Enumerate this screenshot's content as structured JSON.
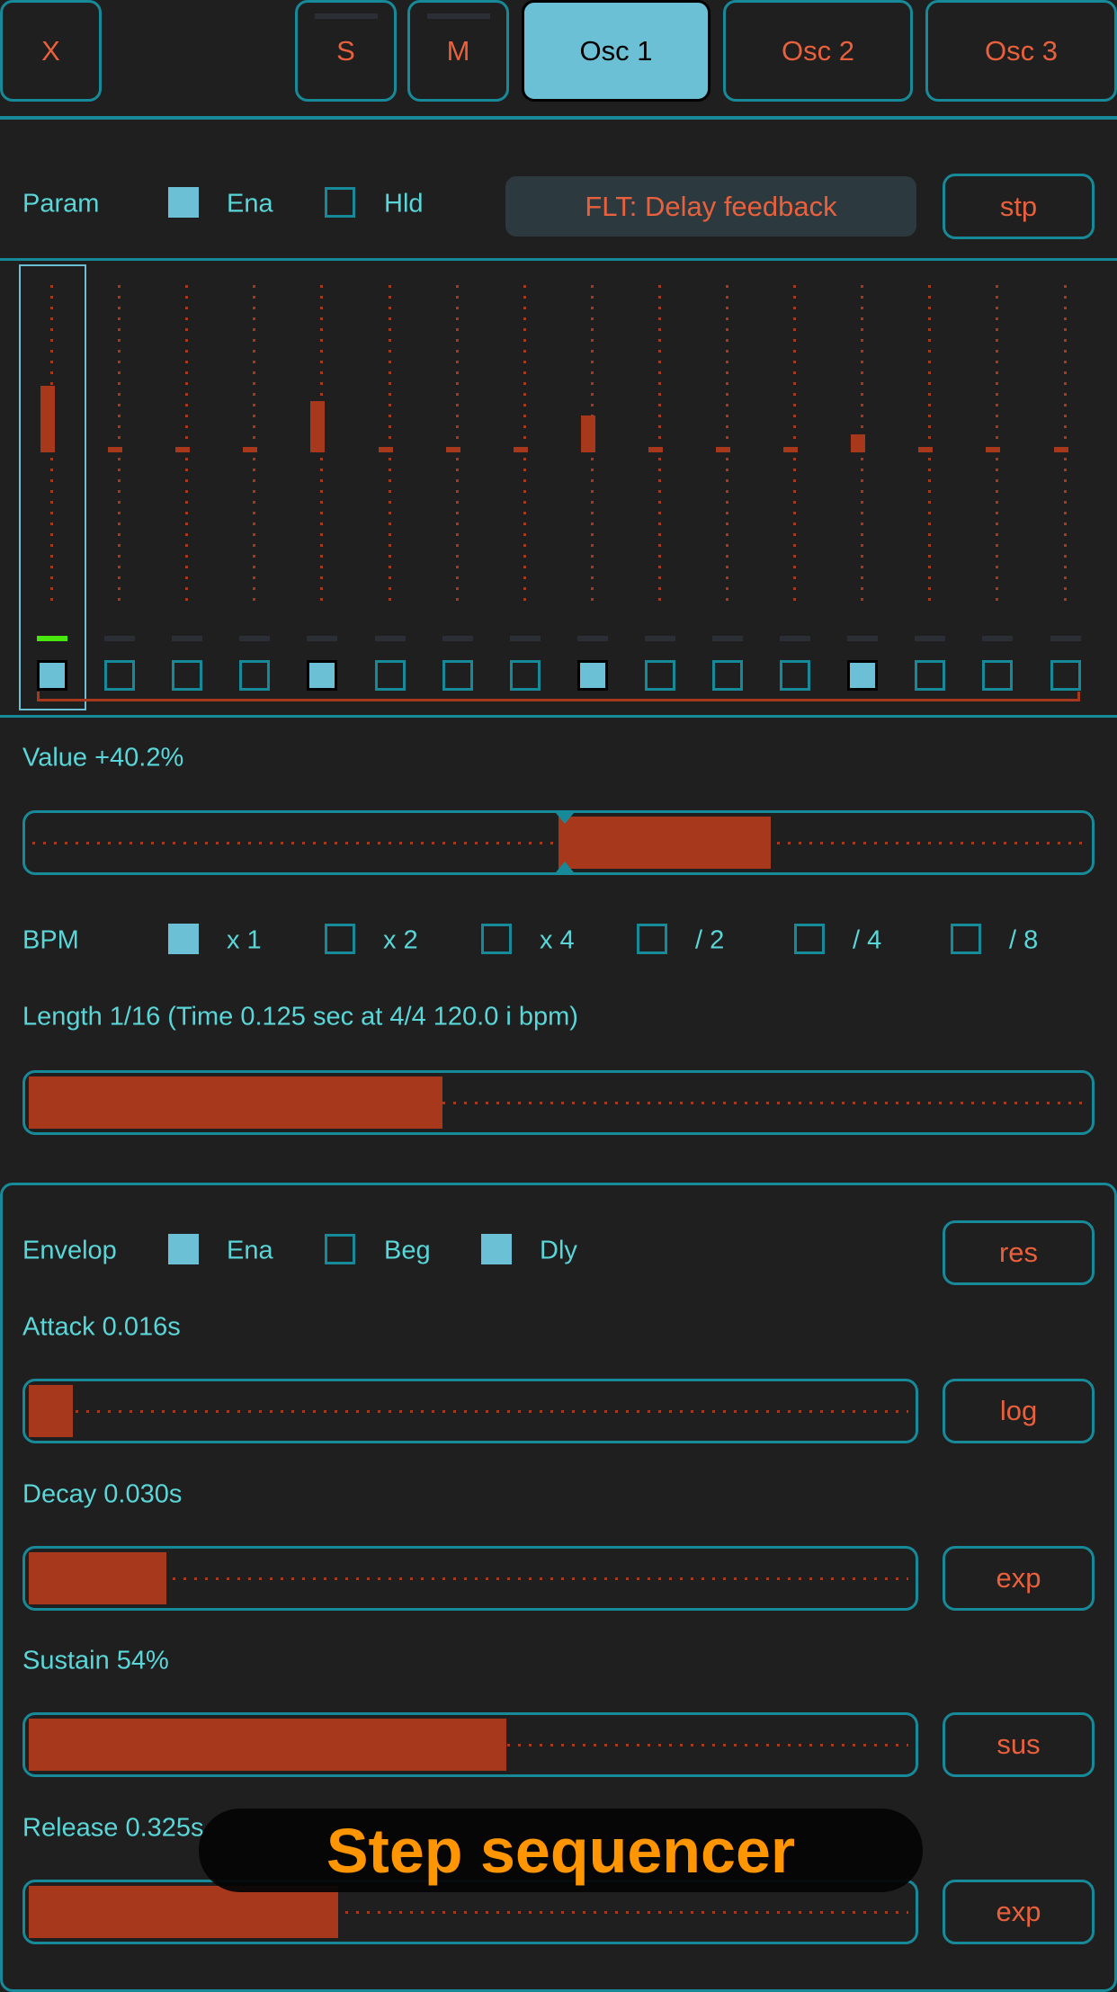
{
  "colors": {
    "accent": "#178a9a",
    "active": "#6cc0d6",
    "text_orange": "#e8603c",
    "fill": "#a8381c",
    "label": "#5ad6d8",
    "playhead": "#4ae60f",
    "overlay_text": "#ff9500"
  },
  "topbar": {
    "close": "X",
    "solo": "S",
    "mute": "M",
    "tabs": [
      {
        "label": "Osc 1",
        "active": true
      },
      {
        "label": "Osc 2",
        "active": false
      },
      {
        "label": "Osc 3",
        "active": false
      }
    ]
  },
  "param": {
    "label": "Param",
    "ena_label": "Ena",
    "ena_checked": true,
    "hld_label": "Hld",
    "hld_checked": false,
    "target": "FLT: Delay feedback",
    "stp": "stp"
  },
  "steps": {
    "selected": 1,
    "playhead": 1,
    "values_percent": [
      40.2,
      0,
      0,
      0,
      31,
      0,
      0,
      0,
      22,
      0,
      0,
      0,
      11,
      0,
      0,
      0
    ],
    "enabled": [
      true,
      false,
      false,
      false,
      true,
      false,
      false,
      false,
      true,
      false,
      false,
      false,
      true,
      false,
      false,
      false
    ]
  },
  "value": {
    "label": "Value +40.2%",
    "percent": 40.2
  },
  "bpm": {
    "label": "BPM",
    "options": [
      {
        "label": "x 1",
        "checked": true
      },
      {
        "label": "x 2",
        "checked": false
      },
      {
        "label": "x 4",
        "checked": false
      },
      {
        "label": "/ 2",
        "checked": false
      },
      {
        "label": "/ 4",
        "checked": false
      },
      {
        "label": "/ 8",
        "checked": false
      }
    ]
  },
  "length": {
    "label": "Length 1/16 (Time 0.125 sec at 4/4 120.0 i bpm)",
    "fraction": 0.39
  },
  "envelope": {
    "label": "Envelop",
    "ena_label": "Ena",
    "ena_checked": true,
    "beg_label": "Beg",
    "beg_checked": false,
    "dly_label": "Dly",
    "dly_checked": true,
    "res": "res",
    "rows": [
      {
        "label": "Attack 0.016s",
        "fraction": 0.05,
        "button": "log"
      },
      {
        "label": "Decay 0.030s",
        "fraction": 0.155,
        "button": "exp"
      },
      {
        "label": "Sustain 54%",
        "fraction": 0.54,
        "button": "sus"
      },
      {
        "label": "Release 0.325s",
        "fraction": 0.35,
        "button": "exp"
      }
    ]
  },
  "overlay": {
    "caption": "Step sequencer"
  }
}
